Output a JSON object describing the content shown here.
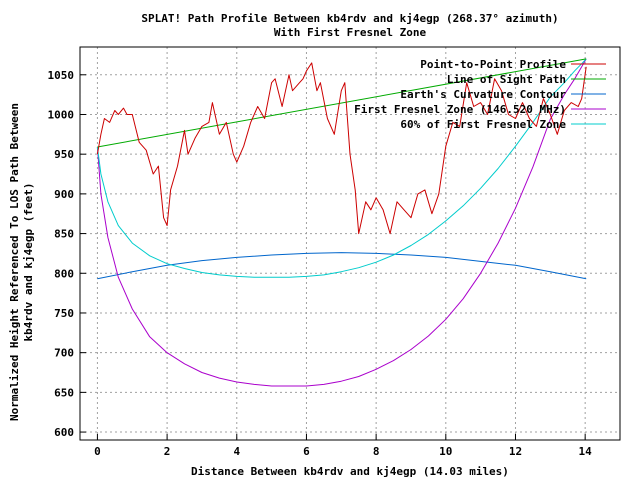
{
  "chart_data": {
    "type": "line",
    "title": "SPLAT! Path Profile Between kb4rdv and kj4egp (268.37° azimuth)",
    "subtitle": "With First Fresnel Zone",
    "xlabel": "Distance Between kb4rdv and kj4egp (14.03 miles)",
    "ylabel_line1": "Normalized Height Referenced To LOS Path Between",
    "ylabel_line2": "kb4rdv and kj4egp (feet)",
    "xlim": [
      -0.5,
      15
    ],
    "ylim": [
      590,
      1085
    ],
    "x_ticks": [
      0,
      2,
      4,
      6,
      8,
      10,
      12,
      14
    ],
    "y_ticks": [
      600,
      650,
      700,
      750,
      800,
      850,
      900,
      950,
      1000,
      1050
    ],
    "grid": true,
    "legend_position": "top-right",
    "colors": {
      "profile": "#cc0000",
      "los": "#00aa00",
      "curvature": "#0066cc",
      "fresnel": "#aa00cc",
      "fresnel60": "#00cccc",
      "grid": "#a0a0a0"
    },
    "series": [
      {
        "name": "Point-to-Point Profile",
        "key": "profile",
        "x": [
          0,
          0.1,
          0.2,
          0.35,
          0.5,
          0.6,
          0.75,
          0.85,
          1.0,
          1.2,
          1.4,
          1.6,
          1.75,
          1.9,
          2.0,
          2.1,
          2.3,
          2.5,
          2.6,
          2.8,
          3.0,
          3.2,
          3.3,
          3.5,
          3.7,
          3.9,
          4.0,
          4.2,
          4.4,
          4.6,
          4.8,
          5.0,
          5.1,
          5.3,
          5.5,
          5.6,
          5.8,
          5.9,
          6.0,
          6.15,
          6.3,
          6.4,
          6.6,
          6.8,
          7.0,
          7.1,
          7.25,
          7.4,
          7.5,
          7.7,
          7.85,
          8.0,
          8.2,
          8.4,
          8.6,
          8.8,
          9.0,
          9.2,
          9.4,
          9.6,
          9.8,
          10.0,
          10.2,
          10.4,
          10.6,
          10.8,
          11.0,
          11.2,
          11.4,
          11.6,
          11.8,
          12.0,
          12.2,
          12.4,
          12.6,
          12.8,
          13.0,
          13.2,
          13.4,
          13.6,
          13.8,
          13.9,
          14.03
        ],
        "values": [
          950,
          975,
          995,
          990,
          1005,
          1000,
          1008,
          1000,
          1000,
          965,
          955,
          925,
          935,
          870,
          860,
          905,
          935,
          980,
          950,
          970,
          985,
          990,
          1015,
          975,
          990,
          950,
          940,
          960,
          990,
          1010,
          995,
          1040,
          1045,
          1010,
          1050,
          1030,
          1040,
          1045,
          1055,
          1065,
          1030,
          1040,
          995,
          975,
          1030,
          1040,
          950,
          905,
          850,
          890,
          880,
          895,
          880,
          850,
          890,
          880,
          870,
          900,
          905,
          875,
          900,
          960,
          990,
          985,
          1040,
          1010,
          1015,
          1000,
          1045,
          1030,
          1000,
          995,
          1015,
          995,
          985,
          1020,
          1000,
          975,
          1005,
          1015,
          1010,
          1020,
          1060
        ]
      },
      {
        "name": "Line of Sight Path",
        "key": "los",
        "x": [
          0,
          14.03
        ],
        "values": [
          959,
          1070
        ]
      },
      {
        "name": "Earth's Curvature Contour",
        "key": "curvature",
        "x": [
          0,
          1,
          2,
          3,
          4,
          5,
          6,
          7,
          8,
          9,
          10,
          11,
          12,
          13,
          14.03
        ],
        "values": [
          793,
          802,
          810,
          816,
          820,
          823,
          825,
          826,
          825,
          823,
          820,
          815,
          810,
          802,
          793
        ]
      },
      {
        "name": "First Fresnel Zone (146.520 MHz)",
        "key": "fresnel",
        "x": [
          0,
          0.1,
          0.3,
          0.6,
          1.0,
          1.5,
          2.0,
          2.5,
          3.0,
          3.5,
          4.0,
          4.5,
          5.0,
          5.5,
          6.0,
          6.5,
          7.0,
          7.5,
          8.0,
          8.5,
          9.0,
          9.5,
          10.0,
          10.5,
          11.0,
          11.5,
          12.0,
          12.5,
          13.0,
          13.4,
          13.7,
          13.9,
          14.03
        ],
        "values": [
          959,
          900,
          845,
          795,
          755,
          720,
          700,
          686,
          675,
          668,
          663,
          660,
          658,
          658,
          658,
          660,
          664,
          670,
          679,
          690,
          704,
          721,
          742,
          768,
          800,
          838,
          882,
          934,
          994,
          1025,
          1045,
          1060,
          1070
        ]
      },
      {
        "name": "60% of First Fresnel Zone",
        "key": "fresnel60",
        "x": [
          0,
          0.1,
          0.3,
          0.6,
          1.0,
          1.5,
          2.0,
          2.5,
          3.0,
          3.5,
          4.0,
          4.5,
          5.0,
          5.5,
          6.0,
          6.5,
          7.0,
          7.5,
          8.0,
          8.5,
          9.0,
          9.5,
          10.0,
          10.5,
          11.0,
          11.5,
          12.0,
          12.5,
          13.0,
          13.4,
          13.7,
          13.9,
          14.03
        ],
        "values": [
          959,
          925,
          890,
          860,
          838,
          822,
          812,
          806,
          801,
          798,
          796,
          795,
          795,
          795,
          796,
          798,
          802,
          807,
          814,
          823,
          835,
          849,
          866,
          885,
          907,
          932,
          960,
          990,
          1022,
          1040,
          1055,
          1064,
          1070
        ]
      }
    ]
  }
}
